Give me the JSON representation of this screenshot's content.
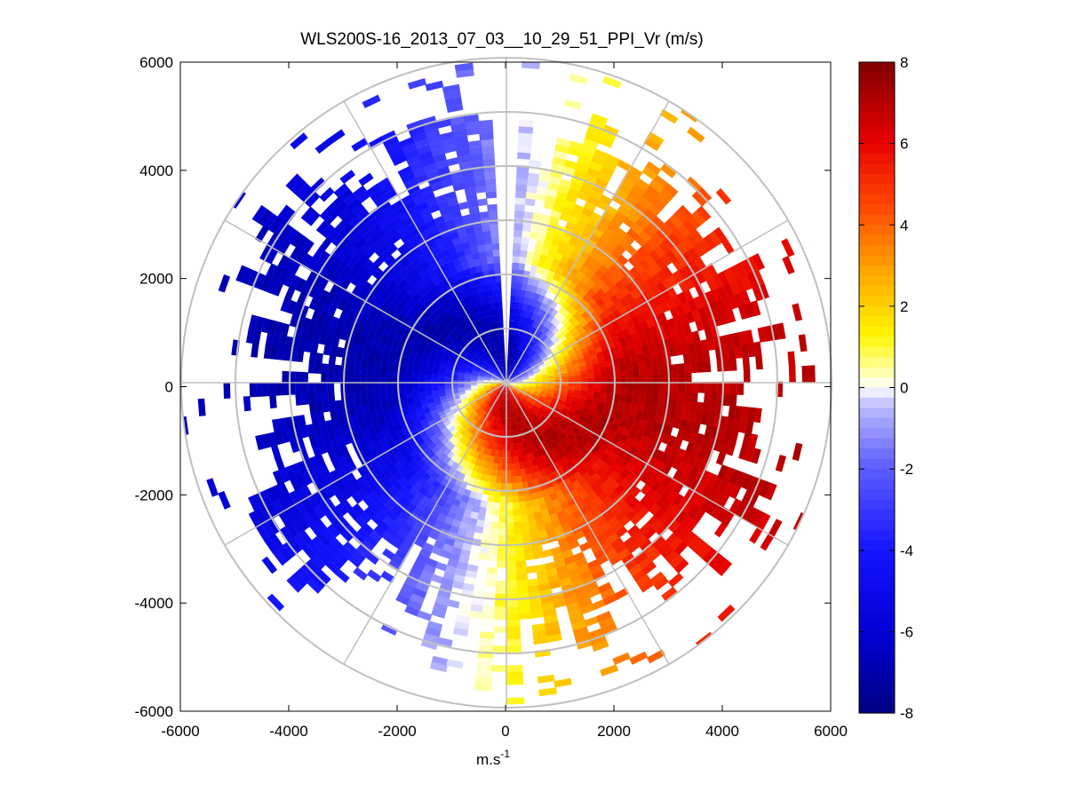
{
  "chart_data": {
    "type": "heatmap",
    "subtype": "polar-ppi-scan",
    "title": "WLS200S-16_2013_07_03__10_29_51_PPI_Vr (m/s)",
    "xlabel_base": "m.s",
    "xlabel_sup": "-1",
    "ylabel": "",
    "xlim": [
      -6000,
      6000
    ],
    "ylim": [
      -6000,
      6000
    ],
    "x_ticks": [
      -6000,
      -4000,
      -2000,
      0,
      2000,
      4000,
      6000
    ],
    "y_ticks": [
      6000,
      4000,
      2000,
      0,
      -2000,
      -4000,
      -6000
    ],
    "x_tick_labels": [
      "-6000",
      "-4000",
      "-2000",
      "0",
      "2000",
      "4000",
      "6000"
    ],
    "y_tick_labels": [
      "6000",
      "4000",
      "2000",
      "0",
      "-2000",
      "-4000",
      "-6000"
    ],
    "range_rings_m": [
      1000,
      2000,
      3000,
      4000,
      5000,
      6000
    ],
    "spoke_angles_deg": [
      0,
      30,
      60,
      90,
      120,
      150,
      180,
      210,
      240,
      270,
      300,
      330
    ],
    "colorbar": {
      "min": -8,
      "max": 8,
      "ticks": [
        8,
        6,
        4,
        2,
        0,
        -2,
        -4,
        -6,
        -8
      ],
      "tick_labels": [
        "8",
        "6",
        "4",
        "2",
        "0",
        "-2",
        "-4",
        "-6",
        "-8"
      ],
      "colormap": "blue-white-red"
    },
    "grid": true
  }
}
